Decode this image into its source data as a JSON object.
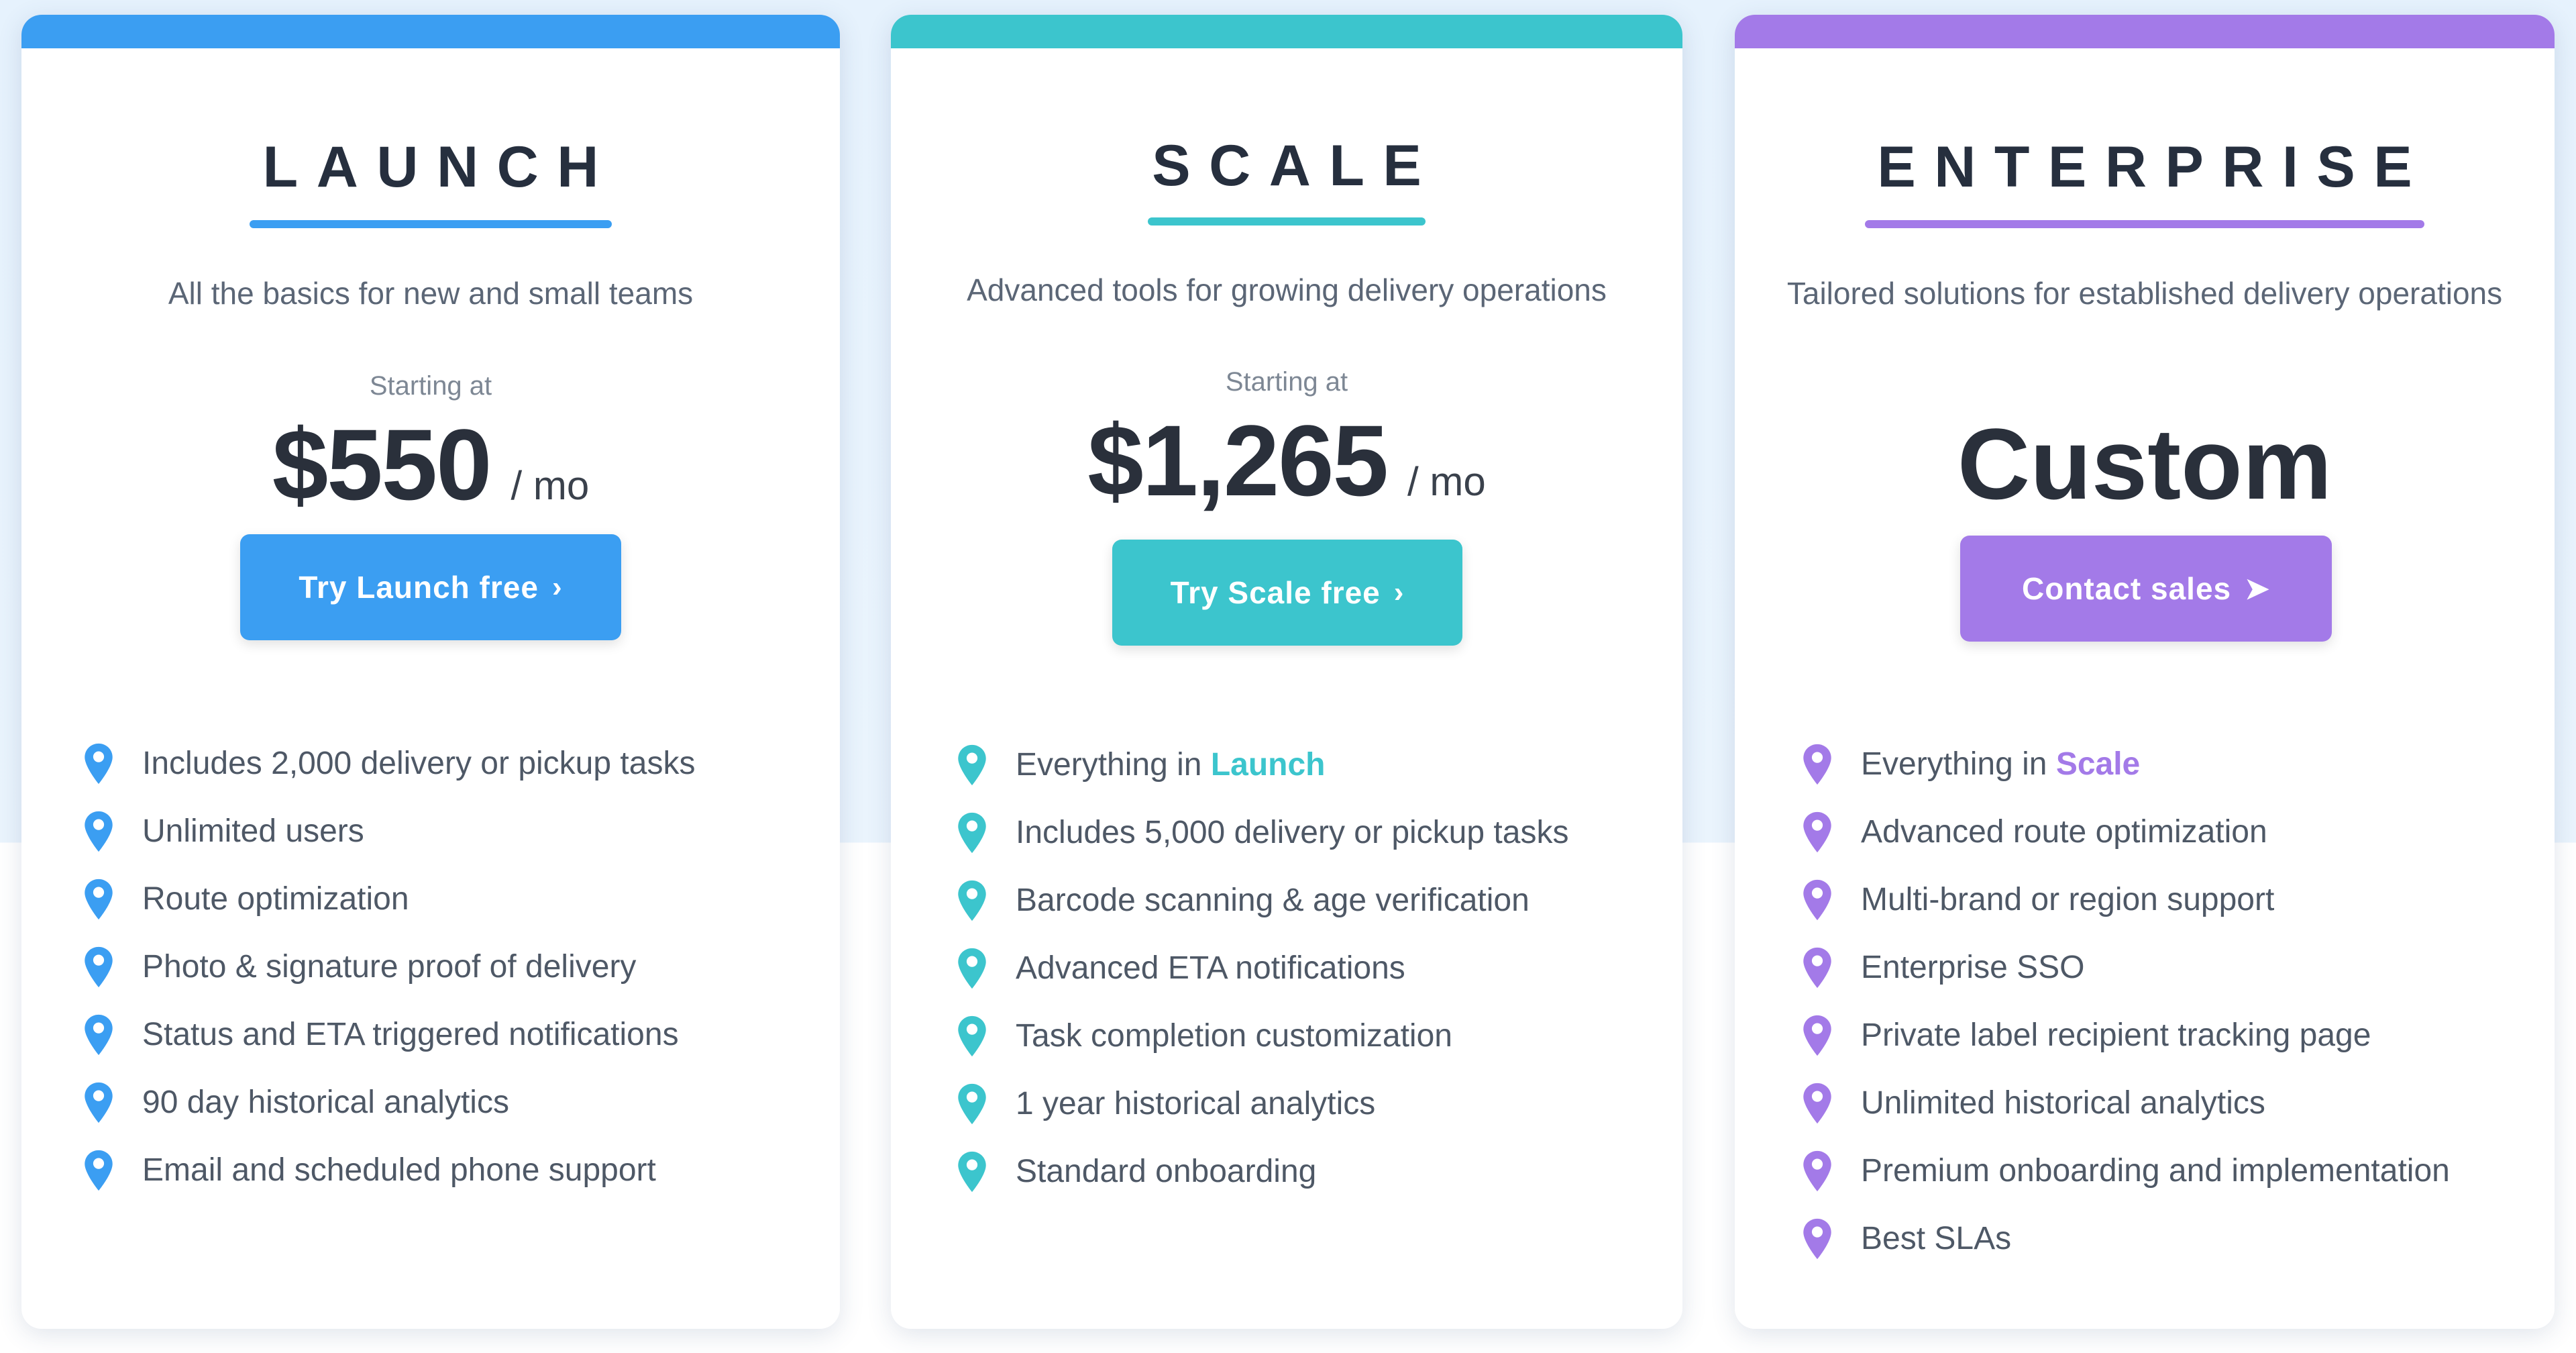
{
  "colors": {
    "launch": "#3b9ef2",
    "scale": "#3cc5cd",
    "enterprise": "#a37ae8"
  },
  "plans": [
    {
      "name": "LAUNCH",
      "tagline": "All the basics for new and small teams",
      "starting_at": "Starting at",
      "price": "$550",
      "per": "/ mo",
      "cta_label": "Try Launch free",
      "cta_icon": "chevron-right-icon",
      "features": [
        "Includes 2,000 delivery or pickup tasks",
        "Unlimited users",
        "Route optimization",
        "Photo & signature proof of delivery",
        "Status and ETA triggered notifications",
        "90 day historical analytics",
        "Email and scheduled phone support"
      ]
    },
    {
      "name": "SCALE",
      "tagline": "Advanced tools for growing delivery operations",
      "starting_at": "Starting at",
      "price": "$1,265",
      "per": "/ mo",
      "cta_label": "Try Scale free",
      "cta_icon": "chevron-right-icon",
      "features_intro": {
        "prefix": "Everything in ",
        "link": "Launch"
      },
      "features": [
        "Includes 5,000 delivery or pickup tasks",
        "Barcode scanning & age verification",
        "Advanced ETA notifications",
        "Task completion customization",
        "1 year historical analytics",
        "Standard onboarding"
      ]
    },
    {
      "name": "ENTERPRISE",
      "tagline": "Tailored solutions for established delivery operations",
      "price": "Custom",
      "cta_label": "Contact sales",
      "cta_icon": "send-arrow-icon",
      "features_intro": {
        "prefix": "Everything in ",
        "link": "Scale"
      },
      "features": [
        "Advanced route optimization",
        "Multi-brand or region support",
        "Enterprise SSO",
        "Private label recipient tracking page",
        "Unlimited historical analytics",
        "Premium onboarding and implementation",
        "Best SLAs"
      ]
    }
  ]
}
